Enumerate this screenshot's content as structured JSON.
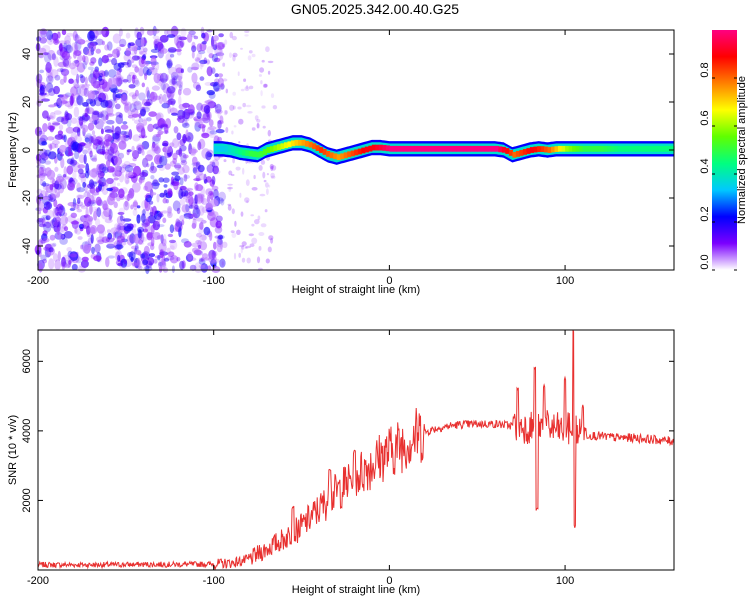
{
  "title": "GN05.2025.342.00.40.G25",
  "chart_data": [
    {
      "type": "heatmap",
      "xlabel": "Height of straight line (km)",
      "ylabel": "Frequency (Hz)",
      "xlim": [
        -200,
        162
      ],
      "ylim": [
        -50,
        50
      ],
      "xticks": [
        -200,
        -100,
        0,
        100
      ],
      "yticks": [
        -40,
        -20,
        0,
        20,
        40
      ],
      "colorbar": {
        "label": "Normalized spectral amplitude",
        "range": [
          0,
          1
        ],
        "ticks": [
          "0.0",
          "0.2",
          "0.4",
          "0.6",
          "0.8"
        ],
        "colors": [
          "#ffffff",
          "#7b00ff",
          "#0000ff",
          "#00c8ff",
          "#00ff80",
          "#60ff00",
          "#ffff00",
          "#ff8000",
          "#ff0000",
          "#ff0080"
        ]
      },
      "noise_region_x": [
        -200,
        -95
      ],
      "ridge": {
        "x": [
          -100,
          -95,
          -90,
          -85,
          -80,
          -75,
          -70,
          -65,
          -60,
          -55,
          -50,
          -45,
          -40,
          -35,
          -30,
          -25,
          -20,
          -15,
          -10,
          -5,
          0,
          10,
          20,
          40,
          60,
          65,
          70,
          75,
          80,
          85,
          90,
          95,
          100,
          105,
          110,
          120,
          130,
          140,
          150,
          162
        ],
        "y": [
          0.5,
          0.5,
          0,
          -1,
          -1.5,
          -2,
          0,
          1,
          2,
          3,
          3,
          2,
          0,
          -2,
          -3,
          -2,
          -1,
          0,
          1,
          1,
          0.5,
          0.5,
          0.5,
          0.5,
          0.5,
          0,
          -2,
          -1,
          0,
          0.5,
          0,
          0.5,
          0.5,
          0.5,
          0.5,
          0.5,
          0.5,
          0.5,
          0.5,
          0.5
        ],
        "amplitude": [
          0.35,
          0.35,
          0.4,
          0.45,
          0.5,
          0.5,
          0.55,
          0.6,
          0.65,
          0.7,
          0.75,
          0.8,
          0.85,
          0.8,
          0.75,
          0.8,
          0.85,
          0.9,
          0.9,
          0.95,
          1,
          1,
          1,
          1,
          1,
          0.9,
          0.8,
          0.85,
          0.9,
          0.85,
          0.8,
          0.7,
          0.6,
          0.55,
          0.5,
          0.5,
          0.45,
          0.45,
          0.45,
          0.45
        ]
      }
    },
    {
      "type": "line",
      "xlabel": "Height of straight line (km)",
      "ylabel": "SNR (10 * v/v)",
      "xlim": [
        -200,
        162
      ],
      "ylim": [
        0,
        6900
      ],
      "xticks": [
        -200,
        -100,
        0,
        100
      ],
      "yticks": [
        2000,
        4000,
        6000
      ],
      "color": "#e8302f",
      "series": [
        {
          "x": [
            -200,
            -180,
            -160,
            -140,
            -120,
            -100,
            -90,
            -80,
            -75,
            -70,
            -65,
            -60,
            -55,
            -50,
            -45,
            -40,
            -35,
            -30,
            -25,
            -20,
            -15,
            -10,
            -5,
            0,
            5,
            10,
            15,
            20,
            25,
            30,
            35,
            40,
            50,
            60,
            70,
            75,
            80,
            85,
            90,
            95,
            100,
            105,
            110,
            120,
            130,
            140,
            150,
            162
          ],
          "y": [
            150,
            150,
            150,
            160,
            160,
            170,
            200,
            300,
            450,
            600,
            750,
            900,
            1050,
            1250,
            1500,
            1750,
            2000,
            2250,
            2450,
            2650,
            2850,
            3050,
            3250,
            3400,
            3550,
            3700,
            3850,
            3950,
            4050,
            4100,
            4150,
            4180,
            4200,
            4200,
            4150,
            4150,
            4100,
            4150,
            4100,
            4050,
            4000,
            4100,
            3900,
            3850,
            3800,
            3800,
            3750,
            3700
          ]
        }
      ],
      "spikes": [
        {
          "x": -55,
          "y": 1800
        },
        {
          "x": -34,
          "y": 2900
        },
        {
          "x": -20,
          "y": 3400
        },
        {
          "x": 73,
          "y": 5200
        },
        {
          "x": 83,
          "y": 5800
        },
        {
          "x": 84,
          "y": 1750
        },
        {
          "x": 88,
          "y": 5300
        },
        {
          "x": 100,
          "y": 5500
        },
        {
          "x": 105,
          "y": 6900
        },
        {
          "x": 105.5,
          "y": 1250
        },
        {
          "x": 110,
          "y": 4700
        }
      ]
    }
  ]
}
